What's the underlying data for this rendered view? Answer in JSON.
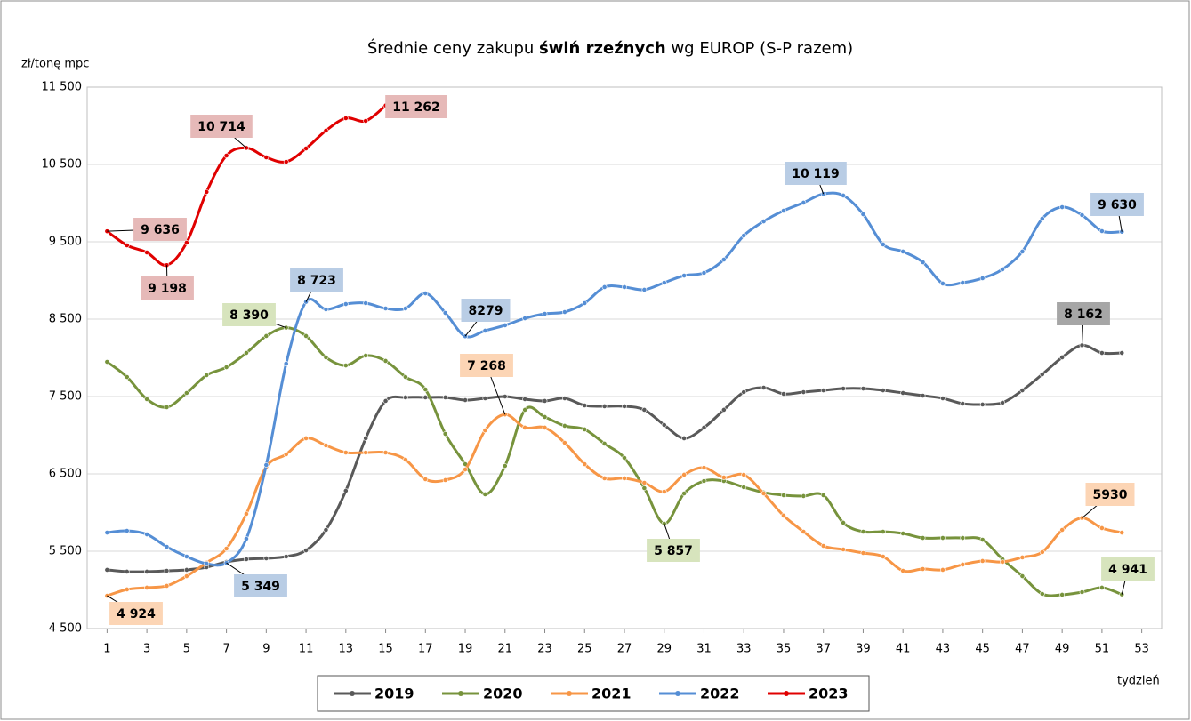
{
  "chart_data": {
    "type": "line",
    "title": "Średnie ceny zakupu",
    "title_bold": "świń rzeźnych",
    "title_rest": "wg EUROP (S-P razem)",
    "y_label": "zł/tonę mpc",
    "x_label": "tydzień",
    "x": [
      1,
      2,
      3,
      4,
      5,
      6,
      7,
      8,
      9,
      10,
      11,
      12,
      13,
      14,
      15,
      16,
      17,
      18,
      19,
      20,
      21,
      22,
      23,
      24,
      25,
      26,
      27,
      28,
      29,
      30,
      31,
      32,
      33,
      34,
      35,
      36,
      37,
      38,
      39,
      40,
      41,
      42,
      43,
      44,
      45,
      46,
      47,
      48,
      49,
      50,
      51,
      52
    ],
    "xlim": [
      0,
      54
    ],
    "xticks": [
      1,
      3,
      5,
      7,
      9,
      11,
      13,
      15,
      17,
      19,
      21,
      23,
      25,
      27,
      29,
      31,
      33,
      35,
      37,
      39,
      41,
      43,
      45,
      47,
      49,
      51,
      53
    ],
    "ylim": [
      4500,
      11500
    ],
    "yticks": [
      {
        "value": 4500,
        "label": "4 500"
      },
      {
        "value": 5500,
        "label": "5 500"
      },
      {
        "value": 6500,
        "label": "6 500"
      },
      {
        "value": 7500,
        "label": "7 500"
      },
      {
        "value": 8500,
        "label": "8 500"
      },
      {
        "value": 9500,
        "label": "9 500"
      },
      {
        "value": 10500,
        "label": "10 500"
      },
      {
        "value": 11500,
        "label": "11 500"
      }
    ],
    "grid": true,
    "series": [
      {
        "name": "2019",
        "color": "#595959",
        "label_fill": "#a6a6a6",
        "values": [
          5259,
          5236,
          5236,
          5247,
          5259,
          5293,
          5362,
          5397,
          5408,
          5431,
          5511,
          5776,
          6282,
          6960,
          7443,
          7489,
          7489,
          7489,
          7454,
          7477,
          7500,
          7466,
          7443,
          7477,
          7385,
          7374,
          7374,
          7328,
          7132,
          6960,
          7098,
          7328,
          7557,
          7615,
          7534,
          7557,
          7580,
          7603,
          7603,
          7580,
          7546,
          7511,
          7477,
          7408,
          7397,
          7420,
          7580,
          7787,
          8006,
          8162,
          8063,
          8063
        ],
        "value_labels": [
          null,
          null,
          null,
          null,
          null,
          null,
          null,
          null,
          null,
          null,
          null,
          null,
          null,
          null,
          null,
          null,
          null,
          null,
          null,
          null,
          null,
          null,
          null,
          null,
          null,
          null,
          null,
          null,
          null,
          null,
          null,
          null,
          null,
          null,
          null,
          null,
          null,
          null,
          null,
          null,
          null,
          null,
          null,
          null,
          null,
          null,
          null,
          null,
          null,
          "8 162",
          null,
          null
        ]
      },
      {
        "name": "2020",
        "color": "#77933c",
        "label_fill": "#d7e4bd",
        "values": [
          7948,
          7753,
          7466,
          7362,
          7546,
          7776,
          7879,
          8063,
          8282,
          8390,
          8282,
          8006,
          7902,
          8029,
          7960,
          7753,
          7592,
          7017,
          6626,
          6236,
          6603,
          7328,
          7236,
          7121,
          7075,
          6891,
          6707,
          6316,
          5857,
          6247,
          6408,
          6408,
          6328,
          6259,
          6224,
          6213,
          6224,
          5868,
          5753,
          5753,
          5730,
          5672,
          5672,
          5672,
          5649,
          5397,
          5178,
          4948,
          4937,
          4971,
          5029,
          4941
        ],
        "value_labels": [
          null,
          null,
          null,
          null,
          null,
          null,
          null,
          null,
          null,
          "8 390",
          null,
          null,
          null,
          null,
          null,
          null,
          null,
          null,
          null,
          null,
          null,
          null,
          null,
          null,
          null,
          null,
          null,
          null,
          "5 857",
          null,
          null,
          null,
          null,
          null,
          null,
          null,
          null,
          null,
          null,
          null,
          null,
          null,
          null,
          null,
          null,
          null,
          null,
          null,
          null,
          null,
          null,
          "4 941"
        ]
      },
      {
        "name": "2021",
        "color": "#f79646",
        "label_fill": "#fcd5b5",
        "values": [
          4924,
          5006,
          5029,
          5052,
          5178,
          5351,
          5534,
          5983,
          6592,
          6753,
          6960,
          6868,
          6776,
          6776,
          6776,
          6684,
          6431,
          6420,
          6557,
          7063,
          7268,
          7098,
          7098,
          6902,
          6626,
          6443,
          6443,
          6385,
          6270,
          6489,
          6580,
          6454,
          6489,
          6247,
          5960,
          5753,
          5569,
          5523,
          5477,
          5431,
          5247,
          5270,
          5259,
          5328,
          5374,
          5362,
          5420,
          5489,
          5776,
          5930,
          5799,
          5741
        ],
        "value_labels": [
          "4 924",
          null,
          null,
          null,
          null,
          null,
          null,
          null,
          null,
          null,
          null,
          null,
          null,
          null,
          null,
          null,
          null,
          null,
          null,
          null,
          "7 268",
          null,
          null,
          null,
          null,
          null,
          null,
          null,
          null,
          null,
          null,
          null,
          null,
          null,
          null,
          null,
          null,
          null,
          null,
          null,
          null,
          null,
          null,
          null,
          null,
          null,
          null,
          null,
          null,
          "5930",
          null,
          null
        ]
      },
      {
        "name": "2022",
        "color": "#558ed5",
        "label_fill": "#b9cde5",
        "values": [
          5741,
          5764,
          5718,
          5557,
          5431,
          5339,
          5349,
          5661,
          6615,
          7925,
          8723,
          8626,
          8695,
          8707,
          8638,
          8638,
          8833,
          8580,
          8279,
          8351,
          8420,
          8511,
          8569,
          8592,
          8707,
          8914,
          8914,
          8880,
          8971,
          9063,
          9098,
          9270,
          9580,
          9764,
          9902,
          10006,
          10119,
          10098,
          9856,
          9466,
          9374,
          9236,
          8960,
          8971,
          9029,
          9144,
          9374,
          9799,
          9948,
          9845,
          9638,
          9630
        ],
        "value_labels": [
          null,
          null,
          null,
          null,
          null,
          null,
          "5 349",
          null,
          null,
          null,
          "8 723",
          null,
          null,
          null,
          null,
          null,
          null,
          null,
          "8279",
          null,
          null,
          null,
          null,
          null,
          null,
          null,
          null,
          null,
          null,
          null,
          null,
          null,
          null,
          null,
          null,
          null,
          "10 119",
          null,
          null,
          null,
          null,
          null,
          null,
          null,
          null,
          null,
          null,
          null,
          null,
          null,
          null,
          "9 630"
        ]
      },
      {
        "name": "2023",
        "color": "#e00000",
        "label_fill": "#e6b9b8",
        "values": [
          9636,
          9454,
          9362,
          9198,
          9489,
          10144,
          10615,
          10714,
          10592,
          10534,
          10707,
          10937,
          11098,
          11063,
          11262,
          null,
          null,
          null,
          null,
          null,
          null,
          null,
          null,
          null,
          null,
          null,
          null,
          null,
          null,
          null,
          null,
          null,
          null,
          null,
          null,
          null,
          null,
          null,
          null,
          null,
          null,
          null,
          null,
          null,
          null,
          null,
          null,
          null,
          null,
          null,
          null,
          null
        ],
        "value_labels": [
          "9 636",
          null,
          null,
          "9 198",
          null,
          null,
          null,
          "10 714",
          null,
          null,
          null,
          null,
          null,
          null,
          "11 262",
          null,
          null,
          null,
          null,
          null,
          null,
          null,
          null,
          null,
          null,
          null,
          null,
          null,
          null,
          null,
          null,
          null,
          null,
          null,
          null,
          null,
          null,
          null,
          null,
          null,
          null,
          null,
          null,
          null,
          null,
          null,
          null,
          null,
          null,
          null,
          null,
          null
        ]
      }
    ]
  }
}
